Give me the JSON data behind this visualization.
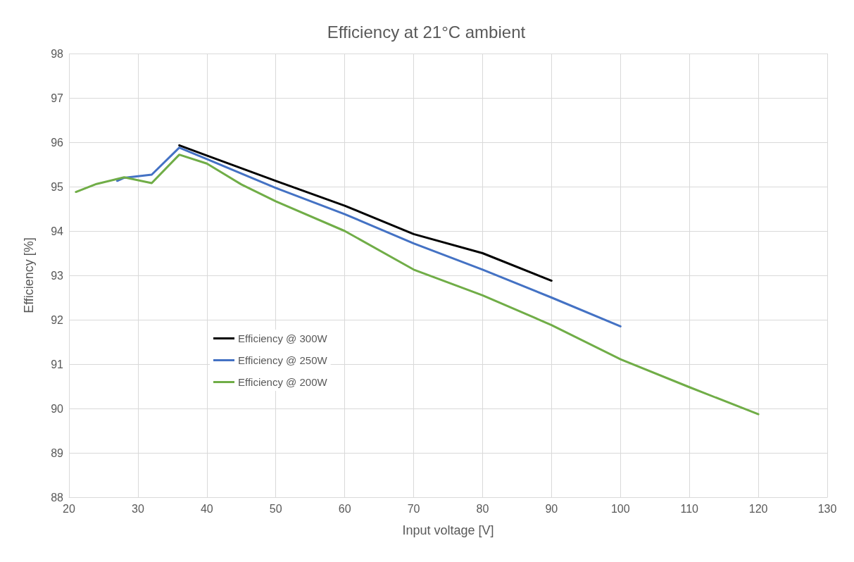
{
  "chart_data": {
    "type": "line",
    "title": "Efficiency at 21°C ambient",
    "xlabel": "Input voltage [V]",
    "ylabel": "Efficiency [%]",
    "xlim": [
      20,
      130
    ],
    "xticks": [
      20,
      30,
      40,
      50,
      60,
      70,
      80,
      90,
      100,
      110,
      120,
      130
    ],
    "ylim": [
      88,
      98
    ],
    "yticks": [
      88,
      89,
      90,
      91,
      92,
      93,
      94,
      95,
      96,
      97,
      98
    ],
    "grid": true,
    "legend": "left",
    "marker": "none",
    "line_style": "solid",
    "series": [
      {
        "name": "Efficiency @ 300W",
        "color": "#000000",
        "x": [
          36,
          40,
          50,
          60,
          70,
          80,
          90
        ],
        "values": [
          95.93,
          95.7,
          95.13,
          94.57,
          93.93,
          93.5,
          92.88
        ]
      },
      {
        "name": "Efficiency @ 250W",
        "color": "#4472c4",
        "x": [
          27,
          28,
          32,
          36,
          40,
          50,
          60,
          70,
          80,
          90,
          100
        ],
        "values": [
          95.13,
          95.2,
          95.27,
          95.88,
          95.62,
          94.97,
          94.38,
          93.72,
          93.13,
          92.5,
          91.85
        ]
      },
      {
        "name": "Efficiency @ 200W",
        "color": "#70ad47",
        "x": [
          21,
          24,
          28,
          32,
          36,
          40,
          45,
          50,
          60,
          70,
          80,
          90,
          100,
          110,
          120
        ],
        "values": [
          94.88,
          95.06,
          95.21,
          95.08,
          95.72,
          95.52,
          95.05,
          94.67,
          94.0,
          93.13,
          92.55,
          91.88,
          91.11,
          90.48,
          89.87
        ]
      }
    ]
  }
}
